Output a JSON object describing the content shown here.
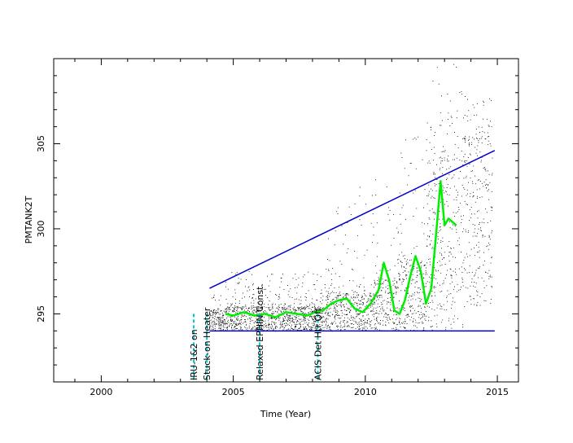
{
  "chart_data": {
    "type": "scatter",
    "title": "",
    "xlabel": "Time (Year)",
    "ylabel": "PMTANK2T",
    "xlim": [
      1998.2,
      2015.8
    ],
    "ylim": [
      291.0,
      310.0
    ],
    "x_ticks": [
      2000,
      2005,
      2010,
      2015
    ],
    "y_ticks": [
      295,
      300,
      305
    ],
    "grid": false,
    "legend": "none",
    "colors": {
      "points": "#000000",
      "smooth": "#00ee00",
      "limits": "#0000cc",
      "events": "#00cccc"
    },
    "series": [
      {
        "kind": "scatter-band",
        "segments": [
          {
            "x0": 2004.1,
            "x1": 2004.6,
            "lo": 294.0,
            "hi": 295.2,
            "spike": 296.8
          },
          {
            "x0": 2004.6,
            "x1": 2008.5,
            "lo": 294.0,
            "hi": 295.4,
            "spike": 297.5
          },
          {
            "x0": 2008.5,
            "x1": 2010.3,
            "lo": 294.0,
            "hi": 296.2,
            "spike": 302.5
          },
          {
            "x0": 2010.3,
            "x1": 2011.2,
            "lo": 294.0,
            "hi": 297.0,
            "spike": 303.5
          },
          {
            "x0": 2011.2,
            "x1": 2012.3,
            "lo": 294.0,
            "hi": 298.0,
            "spike": 305.5
          },
          {
            "x0": 2012.3,
            "x1": 2013.7,
            "lo": 294.0,
            "hi": 304.0,
            "spike": 309.7
          },
          {
            "x0": 2013.7,
            "x1": 2014.8,
            "lo": 295.4,
            "hi": 305.2,
            "spike": 307.8
          }
        ]
      },
      {
        "kind": "smooth",
        "x": [
          2004.7,
          2005.0,
          2005.4,
          2005.8,
          2006.2,
          2006.6,
          2007.0,
          2007.4,
          2007.8,
          2008.1,
          2008.4,
          2008.7,
          2009.0,
          2009.3,
          2009.6,
          2009.9,
          2010.2,
          2010.5,
          2010.7,
          2010.9,
          2011.1,
          2011.3,
          2011.5,
          2011.7,
          2011.9,
          2012.1,
          2012.3,
          2012.5,
          2012.7,
          2012.85,
          2013.0,
          2013.15,
          2013.3,
          2013.45
        ],
        "y": [
          295.0,
          294.9,
          295.1,
          294.9,
          295.0,
          294.8,
          295.1,
          295.0,
          294.9,
          295.1,
          295.2,
          295.6,
          295.8,
          295.9,
          295.3,
          295.1,
          295.6,
          296.4,
          298.0,
          297.0,
          295.2,
          295.0,
          295.8,
          297.2,
          298.4,
          297.5,
          295.6,
          296.5,
          300.0,
          302.8,
          300.2,
          300.6,
          300.4,
          300.2
        ]
      },
      {
        "kind": "limit-line",
        "x": [
          2004.1,
          2014.9
        ],
        "y": [
          296.5,
          304.6
        ]
      },
      {
        "kind": "limit-line",
        "x": [
          2004.1,
          2014.9
        ],
        "y": [
          294.0,
          294.0
        ]
      }
    ],
    "events": [
      {
        "x": 2003.5,
        "label": "IRU-1&2 on"
      },
      {
        "x": 2004.0,
        "label": "Stuck-on Heater"
      },
      {
        "x": 2006.0,
        "label": "Relaxed EPHIN Const."
      },
      {
        "x": 2008.2,
        "label": "ACIS Det Htr Off"
      }
    ]
  }
}
